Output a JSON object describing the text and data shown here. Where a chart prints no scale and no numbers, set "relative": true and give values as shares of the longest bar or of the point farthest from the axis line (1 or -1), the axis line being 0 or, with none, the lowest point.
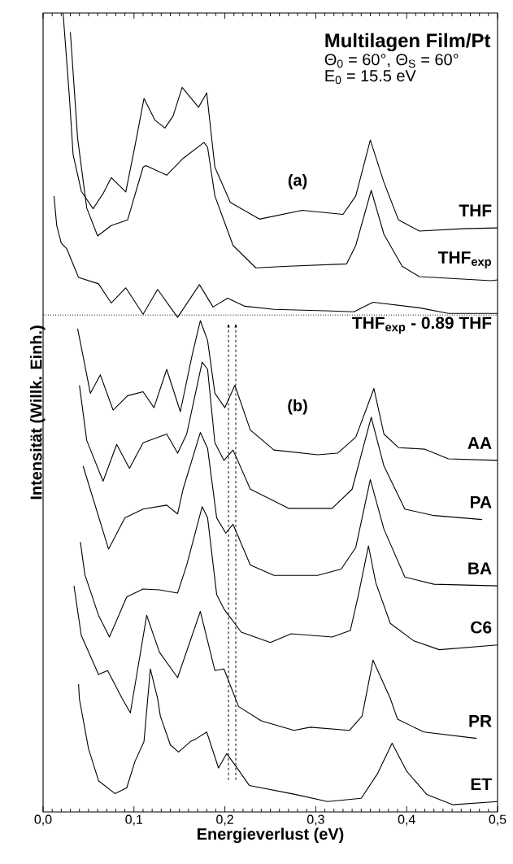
{
  "chart_data": {
    "type": "line",
    "title": "Multilagen Film/Pt",
    "subtitle": "Θ$_{0}$ = 60°, Θ$_{S}$ = 60°",
    "xlabel": "Energieverlust (eV)",
    "ylabel": "Intensität (Willk. Einh.)",
    "annotations": [
      "E$_{0}$ = 15.5 eV",
      "(a)",
      "(b)"
    ],
    "relative": true,
    "xlim": [
      0,
      0.5
    ],
    "xticks": [
      {
        "value": 0,
        "label": "0,0"
      },
      {
        "value": 0.1,
        "label": "0,1"
      },
      {
        "value": 0.2,
        "label": "0,2"
      },
      {
        "value": 0.3,
        "label": "0,3"
      },
      {
        "value": 0.4,
        "label": "0,4"
      },
      {
        "value": 0.5,
        "label": "0,5"
      }
    ],
    "ref_lines": [
      {
        "axis": "y",
        "value": 0.622,
        "line_style": "dotted"
      },
      {
        "axis": "x",
        "value": 0.204,
        "line_style": "dashed"
      },
      {
        "axis": "x",
        "value": 0.212,
        "line_style": "dashed"
      }
    ],
    "series": [
      {
        "name": "THF",
        "color": "#000000",
        "x": [
          0.022,
          0.029,
          0.033,
          0.042,
          0.055,
          0.066,
          0.075,
          0.091,
          0.101,
          0.111,
          0.123,
          0.134,
          0.143,
          0.153,
          0.171,
          0.18,
          0.189,
          0.206,
          0.238,
          0.285,
          0.33,
          0.344,
          0.36,
          0.375,
          0.391,
          0.414,
          0.462,
          0.5
        ],
        "values": [
          1.0,
          0.894,
          0.823,
          0.777,
          0.755,
          0.774,
          0.794,
          0.776,
          0.833,
          0.893,
          0.866,
          0.856,
          0.871,
          0.907,
          0.882,
          0.9,
          0.807,
          0.763,
          0.742,
          0.753,
          0.748,
          0.771,
          0.841,
          0.788,
          0.741,
          0.727,
          0.73,
          0.731
        ]
      },
      {
        "name": "THF$_{exp}$",
        "color": "#000000",
        "x": [
          0.03,
          0.038,
          0.048,
          0.06,
          0.075,
          0.093,
          0.11,
          0.113,
          0.136,
          0.154,
          0.177,
          0.181,
          0.189,
          0.209,
          0.234,
          0.27,
          0.334,
          0.344,
          0.361,
          0.375,
          0.395,
          0.414,
          0.493,
          0.5
        ],
        "values": [
          0.976,
          0.843,
          0.756,
          0.721,
          0.734,
          0.741,
          0.807,
          0.809,
          0.797,
          0.818,
          0.838,
          0.832,
          0.771,
          0.709,
          0.681,
          0.683,
          0.686,
          0.709,
          0.778,
          0.723,
          0.683,
          0.67,
          0.665,
          0.666
        ]
      },
      {
        "name": "THF$_{exp}$ - 0.89 THF",
        "color": "#000000",
        "x": [
          0.012,
          0.015,
          0.02,
          0.026,
          0.039,
          0.061,
          0.075,
          0.091,
          0.11,
          0.126,
          0.148,
          0.172,
          0.187,
          0.203,
          0.222,
          0.254,
          0.318,
          0.342,
          0.363,
          0.414,
          0.446,
          0.5
        ],
        "values": [
          0.771,
          0.734,
          0.712,
          0.705,
          0.669,
          0.661,
          0.637,
          0.656,
          0.623,
          0.654,
          0.619,
          0.66,
          0.632,
          0.643,
          0.633,
          0.629,
          0.627,
          0.626,
          0.638,
          0.631,
          0.624,
          0.624
        ]
      },
      {
        "name": "AA",
        "color": "#000000",
        "x": [
          0.038,
          0.052,
          0.063,
          0.077,
          0.093,
          0.11,
          0.122,
          0.136,
          0.151,
          0.164,
          0.173,
          0.181,
          0.189,
          0.2,
          0.211,
          0.228,
          0.254,
          0.302,
          0.324,
          0.344,
          0.364,
          0.375,
          0.391,
          0.42,
          0.446,
          0.5
        ],
        "values": [
          0.605,
          0.524,
          0.547,
          0.503,
          0.521,
          0.526,
          0.506,
          0.554,
          0.501,
          0.572,
          0.615,
          0.59,
          0.524,
          0.506,
          0.534,
          0.478,
          0.453,
          0.447,
          0.449,
          0.469,
          0.53,
          0.473,
          0.456,
          0.454,
          0.442,
          0.44
        ]
      },
      {
        "name": "PA",
        "color": "#000000",
        "x": [
          0.04,
          0.048,
          0.066,
          0.081,
          0.095,
          0.11,
          0.136,
          0.148,
          0.158,
          0.175,
          0.181,
          0.189,
          0.199,
          0.209,
          0.228,
          0.27,
          0.318,
          0.34,
          0.361,
          0.375,
          0.398,
          0.43,
          0.483
        ],
        "values": [
          0.534,
          0.465,
          0.414,
          0.46,
          0.43,
          0.462,
          0.473,
          0.449,
          0.473,
          0.563,
          0.554,
          0.462,
          0.44,
          0.453,
          0.404,
          0.38,
          0.38,
          0.404,
          0.494,
          0.433,
          0.379,
          0.371,
          0.366
        ]
      },
      {
        "name": "BA",
        "color": "#000000",
        "x": [
          0.044,
          0.072,
          0.09,
          0.11,
          0.136,
          0.148,
          0.154,
          0.173,
          0.181,
          0.191,
          0.201,
          0.209,
          0.228,
          0.254,
          0.302,
          0.328,
          0.344,
          0.36,
          0.375,
          0.398,
          0.43,
          0.5
        ],
        "values": [
          0.433,
          0.329,
          0.368,
          0.379,
          0.384,
          0.373,
          0.404,
          0.475,
          0.455,
          0.368,
          0.349,
          0.36,
          0.309,
          0.296,
          0.296,
          0.304,
          0.331,
          0.416,
          0.354,
          0.294,
          0.285,
          0.283
        ]
      },
      {
        "name": "C6",
        "color": "#000000",
        "x": [
          0.041,
          0.046,
          0.061,
          0.073,
          0.092,
          0.11,
          0.128,
          0.148,
          0.158,
          0.175,
          0.181,
          0.191,
          0.199,
          0.218,
          0.25,
          0.273,
          0.318,
          0.338,
          0.347,
          0.358,
          0.366,
          0.382,
          0.408,
          0.436,
          0.5
        ],
        "values": [
          0.338,
          0.297,
          0.246,
          0.219,
          0.269,
          0.279,
          0.278,
          0.274,
          0.309,
          0.382,
          0.368,
          0.272,
          0.254,
          0.225,
          0.212,
          0.223,
          0.219,
          0.227,
          0.272,
          0.333,
          0.287,
          0.236,
          0.214,
          0.203,
          0.209
        ]
      },
      {
        "name": "PR",
        "color": "#000000",
        "x": [
          0.034,
          0.042,
          0.061,
          0.071,
          0.087,
          0.096,
          0.114,
          0.128,
          0.148,
          0.173,
          0.189,
          0.199,
          0.215,
          0.24,
          0.276,
          0.294,
          0.337,
          0.351,
          0.363,
          0.382,
          0.39,
          0.419,
          0.477
        ],
        "values": [
          0.283,
          0.221,
          0.172,
          0.177,
          0.142,
          0.124,
          0.246,
          0.2,
          0.168,
          0.251,
          0.177,
          0.179,
          0.132,
          0.114,
          0.102,
          0.106,
          0.102,
          0.12,
          0.19,
          0.142,
          0.116,
          0.1,
          0.092
        ]
      },
      {
        "name": "ET",
        "color": "#000000",
        "x": [
          0.039,
          0.04,
          0.05,
          0.061,
          0.079,
          0.092,
          0.101,
          0.111,
          0.118,
          0.126,
          0.129,
          0.14,
          0.149,
          0.162,
          0.169,
          0.18,
          0.193,
          0.202,
          0.211,
          0.227,
          0.277,
          0.313,
          0.35,
          0.368,
          0.384,
          0.4,
          0.422,
          0.451,
          0.5
        ],
        "values": [
          0.16,
          0.141,
          0.079,
          0.039,
          0.023,
          0.03,
          0.063,
          0.088,
          0.179,
          0.142,
          0.12,
          0.084,
          0.075,
          0.088,
          0.092,
          0.1,
          0.055,
          0.073,
          0.059,
          0.033,
          0.022,
          0.013,
          0.017,
          0.048,
          0.086,
          0.051,
          0.022,
          0.009,
          0.013
        ]
      }
    ]
  }
}
